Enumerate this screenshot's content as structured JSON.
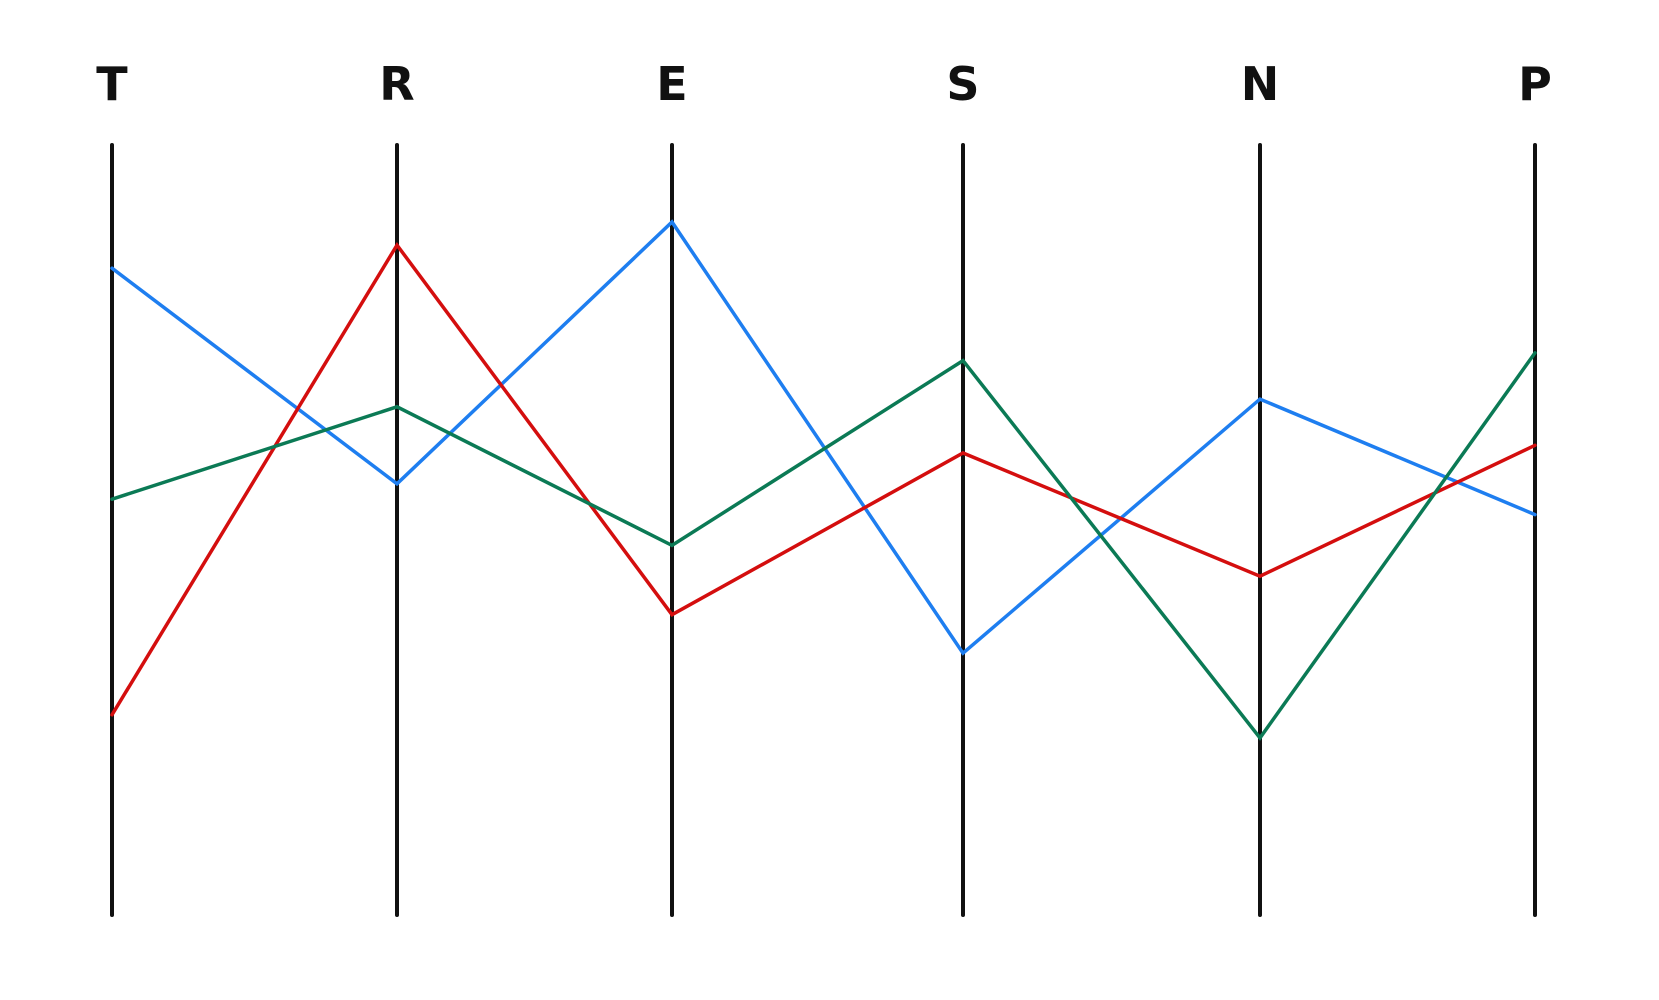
{
  "chart_data": {
    "type": "line",
    "subtype": "parallel-coordinates",
    "categories": [
      "T",
      "R",
      "E",
      "S",
      "N",
      "P"
    ],
    "ylim": [
      0,
      100
    ],
    "grid": false,
    "legend": "none",
    "series": [
      {
        "color": "#1e7ef0",
        "values": [
          84,
          56,
          90,
          34,
          67,
          52
        ]
      },
      {
        "color": "#d40e0e",
        "values": [
          26,
          87,
          39,
          60,
          44,
          61
        ]
      },
      {
        "color": "#0b7a55",
        "values": [
          54,
          66,
          48,
          72,
          23,
          73
        ]
      }
    ]
  }
}
